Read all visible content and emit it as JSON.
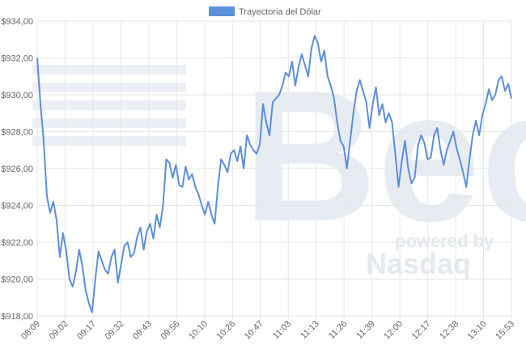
{
  "chart_data": {
    "type": "line",
    "legend": {
      "label": "Trayectoria del Dólar",
      "position": "top-center",
      "color": "#5b8fd8"
    },
    "watermark": {
      "main": "Bec",
      "sub1": "powered by",
      "sub2": "Nasdaq"
    },
    "y_axis": {
      "min": 918,
      "max": 934,
      "ticks": [
        "$918,00",
        "$920,00",
        "$922,00",
        "$924,00",
        "$926,00",
        "$928,00",
        "$930,00",
        "$932,00",
        "$934,00"
      ]
    },
    "x_ticks": [
      "08:09",
      "09:02",
      "09:17",
      "09:32",
      "09:43",
      "09:56",
      "10:10",
      "10:26",
      "10:47",
      "11:03",
      "11:13",
      "11:26",
      "11:39",
      "12:00",
      "12:17",
      "12:38",
      "13:10",
      "15:53"
    ],
    "grid": true,
    "series": [
      {
        "name": "Trayectoria del Dólar",
        "color": "#5b8fd8",
        "values": [
          932.0,
          929.5,
          927.5,
          924.5,
          923.6,
          924.2,
          923.2,
          921.2,
          922.5,
          921.5,
          920.0,
          919.6,
          920.4,
          921.6,
          920.7,
          919.4,
          918.7,
          918.2,
          920.0,
          921.5,
          921.0,
          920.5,
          920.3,
          921.2,
          921.6,
          919.8,
          920.8,
          921.8,
          922.0,
          921.2,
          921.4,
          922.3,
          922.8,
          921.6,
          922.6,
          923.0,
          922.2,
          923.5,
          922.8,
          924.0,
          926.5,
          926.3,
          925.5,
          926.2,
          925.1,
          925.0,
          926.1,
          925.4,
          925.7,
          925.0,
          924.6,
          924.0,
          923.5,
          924.2,
          923.5,
          923.0,
          925.0,
          926.5,
          926.2,
          925.8,
          926.8,
          927.0,
          926.4,
          927.2,
          926.0,
          927.8,
          927.3,
          927.0,
          926.8,
          927.3,
          929.5,
          928.5,
          927.8,
          929.6,
          929.8,
          930.0,
          930.5,
          931.2,
          931.0,
          931.8,
          930.5,
          931.5,
          932.2,
          931.6,
          931.0,
          932.5,
          933.2,
          932.8,
          931.8,
          932.4,
          931.0,
          930.5,
          929.8,
          928.5,
          927.5,
          927.2,
          926.0,
          927.5,
          929.0,
          930.2,
          930.8,
          930.2,
          929.6,
          928.2,
          929.5,
          930.4,
          928.9,
          929.5,
          928.5,
          929.0,
          928.5,
          926.8,
          925.0,
          926.4,
          927.5,
          926.0,
          925.2,
          925.5,
          927.2,
          927.8,
          927.4,
          926.5,
          926.6,
          927.8,
          928.2,
          927.0,
          926.2,
          927.0,
          927.5,
          928.0,
          927.1,
          926.5,
          925.8,
          925.0,
          926.5,
          927.8,
          928.6,
          927.8,
          928.9,
          929.5,
          930.3,
          929.7,
          930.0,
          930.8,
          931.0,
          930.2,
          930.6,
          929.8
        ]
      }
    ]
  }
}
